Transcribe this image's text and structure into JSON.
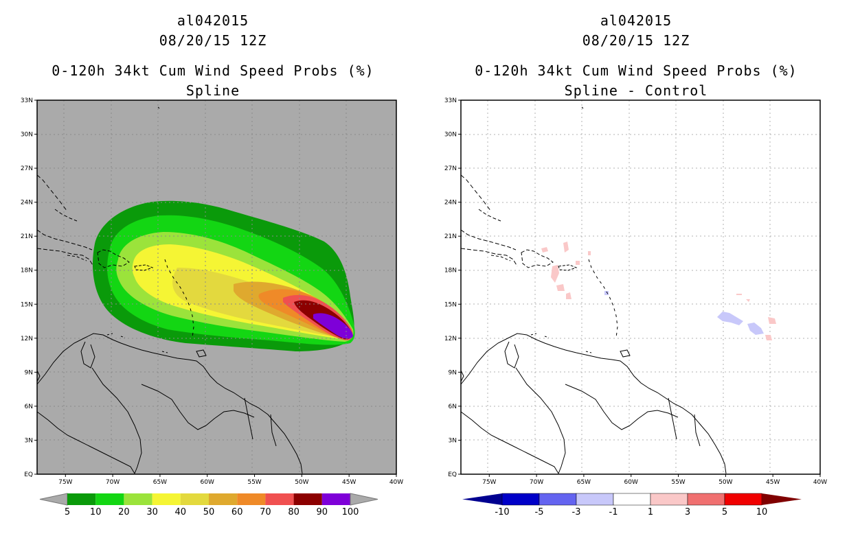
{
  "panels": [
    {
      "id": "left",
      "title_lines": [
        "al042015",
        "08/20/15 12Z",
        "0-120h 34kt Cum Wind Speed Probs (%)",
        "Spline"
      ],
      "background": "#aaaaaa",
      "grid_color": "#8a8a8a",
      "colorbar": {
        "labels": [
          "5",
          "10",
          "20",
          "30",
          "40",
          "50",
          "60",
          "70",
          "80",
          "90",
          "100"
        ],
        "colors": [
          "#0a9a0a",
          "#13d613",
          "#9be33b",
          "#f5f534",
          "#e3d93e",
          "#dfa92e",
          "#ef8a28",
          "#f05050",
          "#8c0000",
          "#7e00d8"
        ],
        "end_color": "#aaaaaa"
      }
    },
    {
      "id": "right",
      "title_lines": [
        "al042015",
        "08/20/15 12Z",
        "0-120h 34kt Cum Wind Speed Probs (%)",
        "Spline - Control"
      ],
      "background": "#ffffff",
      "grid_color": "#b0b0b0",
      "colorbar": {
        "labels": [
          "-10",
          "-5",
          "-3",
          "-1",
          "1",
          "3",
          "5",
          "10"
        ],
        "colors": [
          "#0000c8",
          "#6464f0",
          "#c8c8fa",
          "#ffffff",
          "#fac8c8",
          "#f07070",
          "#f00000"
        ],
        "left_end_color": "#000090",
        "right_end_color": "#800000"
      }
    }
  ],
  "axes": {
    "x_ticks": [
      "75W",
      "70W",
      "65W",
      "60W",
      "55W",
      "50W",
      "45W",
      "40W"
    ],
    "y_ticks": [
      "EQ",
      "3N",
      "6N",
      "9N",
      "12N",
      "15N",
      "18N",
      "21N",
      "24N",
      "27N",
      "30N",
      "33N"
    ],
    "lon_range": [
      -78,
      -40
    ],
    "lat_range": [
      0,
      33
    ]
  }
}
